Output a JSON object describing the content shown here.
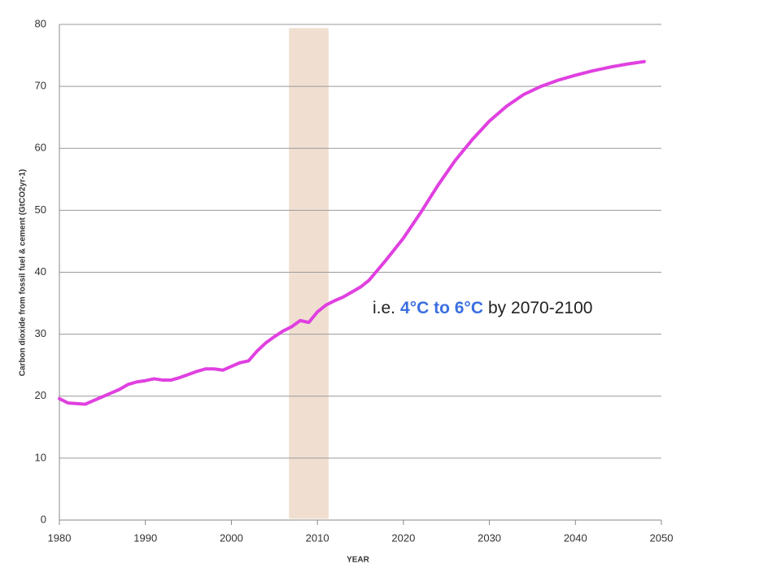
{
  "chart_data": {
    "type": "line",
    "x_label": "YEAR",
    "y_label": "Carbon dioxide from fossil fuel & cement (GtCO2yr-1)",
    "xlim": [
      1980,
      2050
    ],
    "xticks": [
      1980,
      1990,
      2000,
      2010,
      2020,
      2030,
      2040,
      2050
    ],
    "ylim": [
      0,
      80
    ],
    "yticks": [
      0,
      10,
      20,
      30,
      40,
      50,
      60,
      70,
      80
    ],
    "grid": true,
    "series": [
      {
        "color": "#e040e0",
        "x": [
          1980,
          1981,
          1982,
          1983,
          1984,
          1985,
          1986,
          1987,
          1988,
          1989,
          1990,
          1991,
          1992,
          1993,
          1994,
          1995,
          1996,
          1997,
          1998,
          1999,
          2000,
          2001,
          2002,
          2003,
          2004,
          2005,
          2006,
          2007,
          2008,
          2009,
          2010,
          2011,
          2012,
          2013,
          2014,
          2015,
          2016,
          2018,
          2020,
          2022,
          2024,
          2026,
          2028,
          2030,
          2032,
          2034,
          2036,
          2038,
          2040,
          2042,
          2044,
          2046,
          2048
        ],
        "values": [
          19.6,
          18.9,
          18.8,
          18.7,
          19.3,
          19.9,
          20.5,
          21.1,
          21.9,
          22.3,
          22.5,
          22.8,
          22.6,
          22.6,
          23.0,
          23.5,
          24.0,
          24.4,
          24.4,
          24.2,
          24.8,
          25.4,
          25.7,
          27.3,
          28.6,
          29.6,
          30.5,
          31.2,
          32.2,
          31.9,
          33.6,
          34.7,
          35.4,
          36.0,
          36.8,
          37.6,
          38.7,
          42.0,
          45.5,
          49.6,
          54.0,
          58.0,
          61.4,
          64.4,
          66.8,
          68.7,
          70.0,
          71.0,
          71.8,
          72.5,
          73.1,
          73.6,
          74.0
        ]
      }
    ],
    "highlight": {
      "xrange": [
        2006.7,
        2011.3
      ],
      "yrange": [
        0.2,
        79.4
      ],
      "color": "#f0dfd0"
    },
    "annotation": {
      "parts": [
        {
          "text": "i.e.",
          "color": "#222222"
        },
        {
          "text": "4°C to 6°C",
          "color": "#3a6fe0"
        },
        {
          "text": "by 2070-2100",
          "color": "#222222"
        }
      ]
    }
  }
}
